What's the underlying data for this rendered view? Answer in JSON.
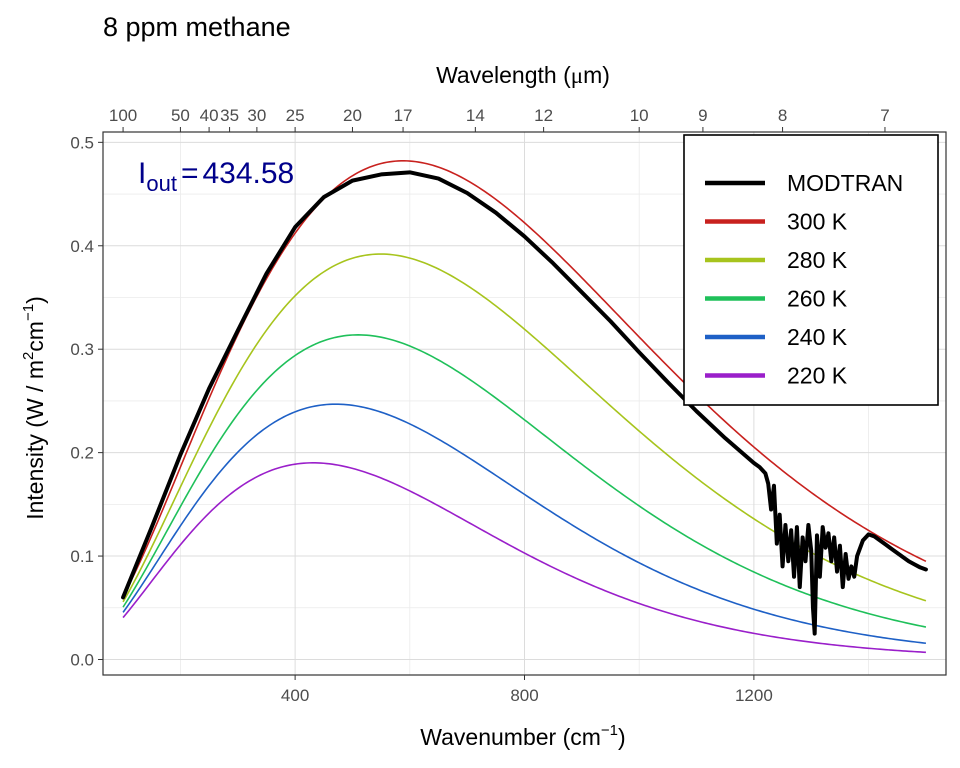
{
  "chart_data": {
    "type": "line",
    "title": "8 ppm methane",
    "xlabel": {
      "main": "Wavenumber (cm",
      "sup": "−1",
      "close": ")"
    },
    "ylabel": {
      "a": "Intensity (W / m",
      "sup1": "2",
      "b": "cm",
      "sup2": "−1",
      "close": ")"
    },
    "x2label": {
      "main": "Wavelength (",
      "mu": "μ",
      "unit": "m)"
    },
    "xlim": [
      65,
      1535
    ],
    "ylim": [
      -0.015,
      0.51
    ],
    "x_ticks": [
      400,
      800,
      1200
    ],
    "x_tick_labels": [
      "400",
      "800",
      "1200"
    ],
    "y_ticks": [
      0.0,
      0.1,
      0.2,
      0.3,
      0.4,
      0.5
    ],
    "y_tick_labels": [
      "0.0",
      "0.1",
      "0.2",
      "0.3",
      "0.4",
      "0.5"
    ],
    "wavelength_ticks": [
      100,
      50,
      40,
      35,
      30,
      25,
      20,
      17,
      14,
      12,
      10,
      9,
      8,
      7
    ],
    "wavelength_tick_labels": [
      "100",
      "50",
      "40",
      "35",
      "30",
      "25",
      "20",
      "17",
      "14",
      "12",
      "10",
      "9",
      "8",
      "7"
    ],
    "grid": true,
    "legend_position": "top-right",
    "annotation": {
      "symbol": "I",
      "subscript": "out",
      "equals": "=",
      "value": "434.58"
    },
    "series": [
      {
        "name": "MODTRAN",
        "color": "#000000",
        "kind": "measured",
        "x": [
          100,
          150,
          200,
          250,
          300,
          350,
          400,
          450,
          500,
          550,
          600,
          650,
          700,
          750,
          800,
          850,
          900,
          950,
          1000,
          1050,
          1100,
          1150,
          1200,
          1210,
          1220,
          1225,
          1230,
          1235,
          1240,
          1245,
          1250,
          1255,
          1260,
          1265,
          1270,
          1275,
          1280,
          1285,
          1290,
          1295,
          1300,
          1303,
          1306,
          1310,
          1315,
          1320,
          1325,
          1330,
          1335,
          1340,
          1345,
          1350,
          1355,
          1360,
          1365,
          1370,
          1375,
          1380,
          1390,
          1400,
          1410,
          1420,
          1430,
          1440,
          1450,
          1460,
          1470,
          1480,
          1490,
          1500
        ],
        "y": [
          0.06,
          0.128,
          0.198,
          0.262,
          0.318,
          0.373,
          0.418,
          0.447,
          0.463,
          0.469,
          0.471,
          0.465,
          0.451,
          0.432,
          0.409,
          0.383,
          0.355,
          0.327,
          0.297,
          0.268,
          0.24,
          0.214,
          0.19,
          0.186,
          0.18,
          0.17,
          0.145,
          0.168,
          0.112,
          0.14,
          0.09,
          0.13,
          0.095,
          0.125,
          0.08,
          0.128,
          0.07,
          0.118,
          0.095,
          0.13,
          0.105,
          0.05,
          0.025,
          0.12,
          0.08,
          0.128,
          0.108,
          0.122,
          0.095,
          0.118,
          0.085,
          0.11,
          0.07,
          0.102,
          0.078,
          0.09,
          0.08,
          0.1,
          0.115,
          0.121,
          0.119,
          0.115,
          0.111,
          0.107,
          0.103,
          0.099,
          0.095,
          0.092,
          0.089,
          0.087
        ]
      },
      {
        "name": "300 K",
        "color": "#c8211e",
        "temperature": 300
      },
      {
        "name": "280 K",
        "color": "#a7c41d",
        "temperature": 280
      },
      {
        "name": "260 K",
        "color": "#1fc05a",
        "temperature": 260
      },
      {
        "name": "240 K",
        "color": "#1e60c6",
        "temperature": 240
      },
      {
        "name": "220 K",
        "color": "#9a1fca",
        "temperature": 220
      }
    ],
    "planck_x_range": [
      100,
      1500
    ]
  }
}
